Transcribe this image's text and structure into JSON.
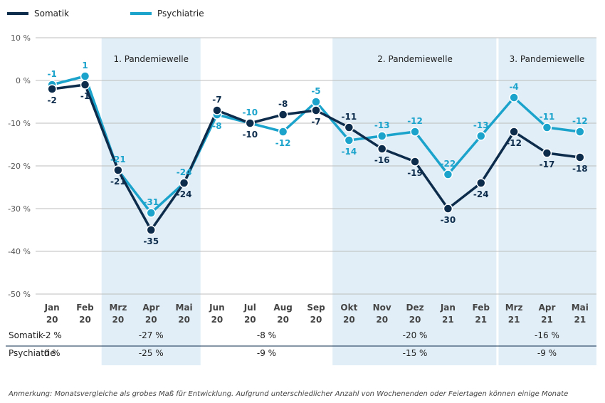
{
  "chart_data": {
    "type": "line",
    "legend": {
      "position": "top-left"
    },
    "colors": {
      "Somatik": "#0d2c4c",
      "Psychiatrie": "#1ba3cc",
      "band": "#e1eef7",
      "grid": "#bdbdbd"
    },
    "ylim": [
      -50,
      10
    ],
    "yticks": [
      10,
      0,
      -10,
      -20,
      -30,
      -40,
      -50
    ],
    "ytick_labels": [
      "10 %",
      "0 %",
      "-10 %",
      "-20 %",
      "-30 %",
      "-40 %",
      "-50 %"
    ],
    "categories": [
      {
        "month": "Jan",
        "year": "20"
      },
      {
        "month": "Feb",
        "year": "20"
      },
      {
        "month": "Mrz",
        "year": "20"
      },
      {
        "month": "Apr",
        "year": "20"
      },
      {
        "month": "Mai",
        "year": "20"
      },
      {
        "month": "Jun",
        "year": "20"
      },
      {
        "month": "Jul",
        "year": "20"
      },
      {
        "month": "Aug",
        "year": "20"
      },
      {
        "month": "Sep",
        "year": "20"
      },
      {
        "month": "Okt",
        "year": "20"
      },
      {
        "month": "Nov",
        "year": "20"
      },
      {
        "month": "Dez",
        "year": "20"
      },
      {
        "month": "Jan",
        "year": "21"
      },
      {
        "month": "Feb",
        "year": "21"
      },
      {
        "month": "Mrz",
        "year": "21"
      },
      {
        "month": "Apr",
        "year": "21"
      },
      {
        "month": "Mai",
        "year": "21"
      }
    ],
    "series": [
      {
        "name": "Somatik",
        "values": [
          -2,
          -1,
          -21,
          -35,
          -24,
          -7,
          -10,
          -8,
          -7,
          -11,
          -16,
          -19,
          -30,
          -24,
          -12,
          -17,
          -18
        ],
        "labels": [
          "-2",
          "-1",
          "-21",
          "-35",
          "-24",
          "-7",
          "-10",
          "-8",
          "-7",
          "-11",
          "-16",
          "-19",
          "-30",
          "-24",
          "-12",
          "-17",
          "-18"
        ]
      },
      {
        "name": "Psychiatrie",
        "values": [
          -1,
          1,
          -21,
          -31,
          -24,
          -8,
          -10,
          -12,
          -5,
          -14,
          -13,
          -12,
          -22,
          -13,
          -4,
          -11,
          -12
        ],
        "labels": [
          "-1",
          "1",
          "-21",
          "-31",
          "-24",
          "-8",
          "-10",
          "-12",
          "-5",
          "-14",
          "-13",
          "-12",
          "-22",
          "-13",
          "-4",
          "-11",
          "-12"
        ]
      }
    ],
    "waves": [
      {
        "label": "1. Pandemiewelle",
        "start": 2,
        "end": 4
      },
      {
        "label": "2. Pandemiewelle",
        "start": 9,
        "end": 13
      },
      {
        "label": "3. Pandemiewelle",
        "start": 14,
        "end": 16
      }
    ],
    "summary_rows": [
      {
        "label": "Somatik",
        "cells": [
          {
            "text": "-2 %",
            "start": 0,
            "end": 0
          },
          {
            "text": "-27 %",
            "start": 2,
            "end": 4
          },
          {
            "text": "-8 %",
            "start": 5,
            "end": 8
          },
          {
            "text": "-20 %",
            "start": 9,
            "end": 13
          },
          {
            "text": "-16 %",
            "start": 14,
            "end": 16
          }
        ]
      },
      {
        "label": "Psychiatrie",
        "cells": [
          {
            "text": "0 %",
            "start": 0,
            "end": 0
          },
          {
            "text": "-25 %",
            "start": 2,
            "end": 4
          },
          {
            "text": "-9 %",
            "start": 5,
            "end": 8
          },
          {
            "text": "-15 %",
            "start": 9,
            "end": 13
          },
          {
            "text": "-9 %",
            "start": 14,
            "end": 16
          }
        ]
      }
    ]
  },
  "footnote": "Anmerkung: Monatsvergleiche als grobes Maß für Entwicklung. Aufgrund unterschiedlicher Anzahl von Wochenenden oder Feiertagen können einige Monate"
}
